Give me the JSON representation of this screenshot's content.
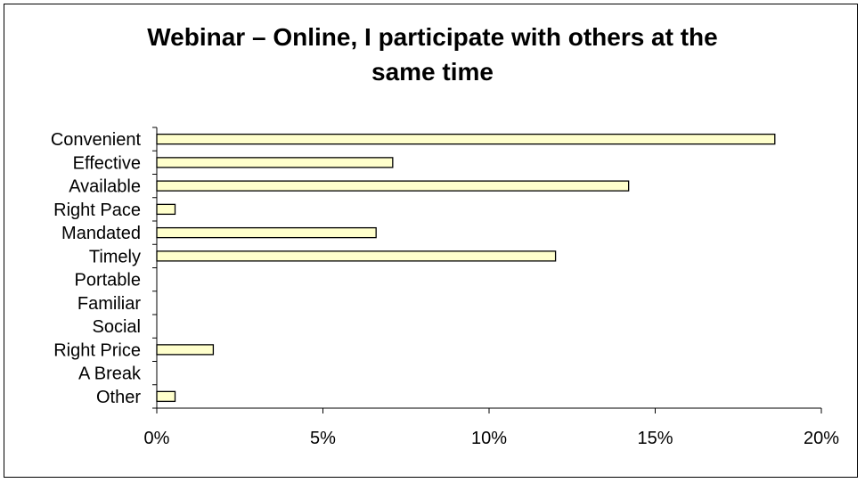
{
  "chart_data": {
    "type": "bar",
    "orientation": "horizontal",
    "title_line1": "Webinar – Online, I participate with others at the",
    "title_line2": "same time",
    "categories": [
      "Convenient",
      "Effective",
      "Available",
      "Right Pace",
      "Mandated",
      "Timely",
      "Portable",
      "Familiar",
      "Social",
      "Right Price",
      "A Break",
      "Other"
    ],
    "values": [
      18.6,
      7.1,
      14.2,
      0.55,
      6.6,
      12.0,
      0,
      0,
      0,
      1.7,
      0,
      0.55
    ],
    "xlim": [
      0,
      20
    ],
    "xticks": [
      0,
      5,
      10,
      15,
      20
    ],
    "xtick_labels": [
      "0%",
      "5%",
      "10%",
      "15%",
      "20%"
    ],
    "xlabel": "",
    "ylabel": "",
    "grid": false,
    "legend": "none",
    "bar_color": "#FFFFCC",
    "bar_edge_color": "#000000"
  }
}
